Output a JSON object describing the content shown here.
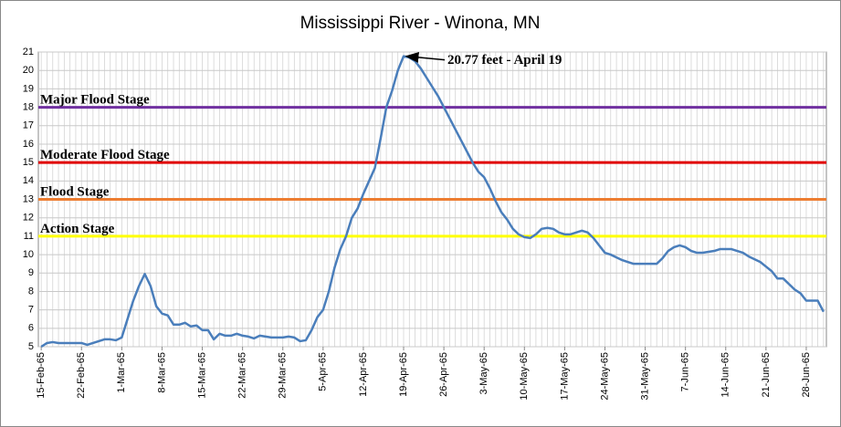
{
  "chart_data": {
    "type": "line",
    "title": "Mississippi River - Winona, MN",
    "categories": [
      "15-Feb-65",
      null,
      null,
      null,
      null,
      null,
      null,
      "22-Feb-65",
      null,
      null,
      null,
      null,
      null,
      null,
      "1-Mar-65",
      null,
      null,
      null,
      null,
      null,
      null,
      "8-Mar-65",
      null,
      null,
      null,
      null,
      null,
      null,
      "15-Mar-65",
      null,
      null,
      null,
      null,
      null,
      null,
      "22-Mar-65",
      null,
      null,
      null,
      null,
      null,
      null,
      "29-Mar-65",
      null,
      null,
      null,
      null,
      null,
      null,
      "5-Apr-65",
      null,
      null,
      null,
      null,
      null,
      null,
      "12-Apr-65",
      null,
      null,
      null,
      null,
      null,
      null,
      "19-Apr-65",
      null,
      null,
      null,
      null,
      null,
      null,
      "26-Apr-65",
      null,
      null,
      null,
      null,
      null,
      null,
      "3-May-65",
      null,
      null,
      null,
      null,
      null,
      null,
      "10-May-65",
      null,
      null,
      null,
      null,
      null,
      null,
      "17-May-65",
      null,
      null,
      null,
      null,
      null,
      null,
      "24-May-65",
      null,
      null,
      null,
      null,
      null,
      null,
      "31-May-65",
      null,
      null,
      null,
      null,
      null,
      null,
      "7-Jun-65",
      null,
      null,
      null,
      null,
      null,
      null,
      "14-Jun-65",
      null,
      null,
      null,
      null,
      null,
      null,
      "21-Jun-65",
      null,
      null,
      null,
      null,
      null,
      null,
      "28-Jun-65",
      null,
      null,
      null
    ],
    "series": [
      {
        "color": "#4a7ebb",
        "values": [
          5.0,
          5.2,
          5.25,
          5.2,
          5.2,
          5.2,
          5.2,
          5.2,
          5.1,
          5.2,
          5.3,
          5.4,
          5.4,
          5.35,
          5.5,
          6.5,
          7.5,
          8.3,
          8.95,
          8.3,
          7.2,
          6.8,
          6.7,
          6.2,
          6.2,
          6.3,
          6.1,
          6.15,
          5.9,
          5.9,
          5.4,
          5.7,
          5.6,
          5.6,
          5.7,
          5.6,
          5.55,
          5.45,
          5.6,
          5.55,
          5.5,
          5.5,
          5.5,
          5.55,
          5.5,
          5.3,
          5.35,
          5.9,
          6.6,
          7.0,
          8.0,
          9.3,
          10.3,
          11.0,
          12.0,
          12.5,
          13.3,
          14.0,
          14.7,
          16.3,
          18.0,
          18.9,
          20.0,
          20.77,
          20.7,
          20.5,
          20.1,
          19.6,
          19.1,
          18.6,
          18.0,
          17.4,
          16.8,
          16.2,
          15.6,
          15.0,
          14.5,
          14.2,
          13.6,
          12.9,
          12.3,
          11.9,
          11.4,
          11.1,
          10.95,
          10.9,
          11.1,
          11.4,
          11.45,
          11.4,
          11.2,
          11.1,
          11.1,
          11.2,
          11.3,
          11.2,
          10.9,
          10.5,
          10.1,
          10.0,
          9.85,
          9.7,
          9.6,
          9.5,
          9.5,
          9.5,
          9.5,
          9.5,
          9.8,
          10.2,
          10.4,
          10.5,
          10.4,
          10.2,
          10.1,
          10.1,
          10.15,
          10.2,
          10.3,
          10.3,
          10.3,
          10.2,
          10.1,
          9.9,
          9.75,
          9.6,
          9.35,
          9.1,
          8.7,
          8.7,
          8.4,
          8.1,
          7.9,
          7.5,
          7.5,
          7.5,
          6.9
        ]
      }
    ],
    "stages": [
      {
        "name": "Major Flood Stage",
        "value": 18,
        "color": "#7030a0"
      },
      {
        "name": "Moderate Flood Stage",
        "value": 15,
        "color": "#e00000"
      },
      {
        "name": "Flood Stage",
        "value": 13,
        "color": "#ed7d31"
      },
      {
        "name": "Action Stage",
        "value": 11,
        "color": "#ffff00"
      }
    ],
    "annotation": "20.77 feet - April 19",
    "ylim": [
      5,
      21
    ],
    "yticks": [
      5,
      6,
      7,
      8,
      9,
      10,
      11,
      12,
      13,
      14,
      15,
      16,
      17,
      18,
      19,
      20,
      21
    ],
    "grid": true
  }
}
